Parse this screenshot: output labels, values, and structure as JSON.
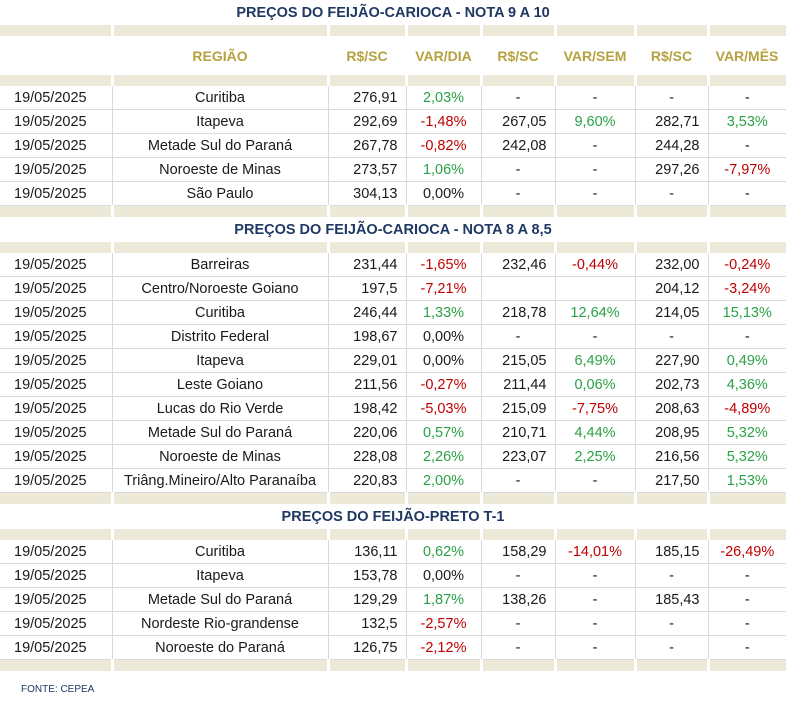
{
  "headers": {
    "regiao": "REGIÃO",
    "rs_sc": "R$/SC",
    "var_dia": "VAR/DIA",
    "rs_sc_sem": "R$/SC",
    "var_sem": "VAR/SEM",
    "rs_sc_mes": "R$/SC",
    "var_mes": "VAR/MÊS"
  },
  "source": "FONTE: CEPEA",
  "colors": {
    "title": "#1f3864",
    "header": "#b5a23f",
    "positive": "#2aa146",
    "negative": "#c00000",
    "strip": "#ece9d8"
  },
  "sections": [
    {
      "title": "PREÇOS DO FEIJÃO-CARIOCA - NOTA 9 A 10",
      "show_header": true,
      "rows": [
        {
          "date": "19/05/2025",
          "region": "Curitiba",
          "price": "276,91",
          "var_day": "2,03%",
          "price_week": "-",
          "var_week": "-",
          "price_month": "-",
          "var_month": "-"
        },
        {
          "date": "19/05/2025",
          "region": "Itapeva",
          "price": "292,69",
          "var_day": "-1,48%",
          "price_week": "267,05",
          "var_week": "9,60%",
          "price_month": "282,71",
          "var_month": "3,53%"
        },
        {
          "date": "19/05/2025",
          "region": "Metade Sul do Paraná",
          "price": "267,78",
          "var_day": "-0,82%",
          "price_week": "242,08",
          "var_week": "-",
          "price_month": "244,28",
          "var_month": "-"
        },
        {
          "date": "19/05/2025",
          "region": "Noroeste de Minas",
          "price": "273,57",
          "var_day": "1,06%",
          "price_week": "-",
          "var_week": "-",
          "price_month": "297,26",
          "var_month": "-7,97%"
        },
        {
          "date": "19/05/2025",
          "region": "São Paulo",
          "price": "304,13",
          "var_day": "0,00%",
          "price_week": "-",
          "var_week": "-",
          "price_month": "-",
          "var_month": "-"
        }
      ]
    },
    {
      "title": "PREÇOS DO FEIJÃO-CARIOCA - NOTA 8 A 8,5",
      "show_header": false,
      "rows": [
        {
          "date": "19/05/2025",
          "region": "Barreiras",
          "price": "231,44",
          "var_day": "-1,65%",
          "price_week": "232,46",
          "var_week": "-0,44%",
          "price_month": "232,00",
          "var_month": "-0,24%"
        },
        {
          "date": "19/05/2025",
          "region": "Centro/Noroeste Goiano",
          "price": "197,5",
          "var_day": "-7,21%",
          "price_week": "",
          "var_week": "",
          "price_month": "204,12",
          "var_month": "-3,24%"
        },
        {
          "date": "19/05/2025",
          "region": "Curitiba",
          "price": "246,44",
          "var_day": "1,33%",
          "price_week": "218,78",
          "var_week": "12,64%",
          "price_month": "214,05",
          "var_month": "15,13%"
        },
        {
          "date": "19/05/2025",
          "region": "Distrito Federal",
          "price": "198,67",
          "var_day": "0,00%",
          "price_week": "-",
          "var_week": "-",
          "price_month": "-",
          "var_month": "-"
        },
        {
          "date": "19/05/2025",
          "region": "Itapeva",
          "price": "229,01",
          "var_day": "0,00%",
          "price_week": "215,05",
          "var_week": "6,49%",
          "price_month": "227,90",
          "var_month": "0,49%"
        },
        {
          "date": "19/05/2025",
          "region": "Leste Goiano",
          "price": "211,56",
          "var_day": "-0,27%",
          "price_week": "211,44",
          "var_week": "0,06%",
          "price_month": "202,73",
          "var_month": "4,36%"
        },
        {
          "date": "19/05/2025",
          "region": "Lucas do Rio Verde",
          "price": "198,42",
          "var_day": "-5,03%",
          "price_week": "215,09",
          "var_week": "-7,75%",
          "price_month": "208,63",
          "var_month": "-4,89%"
        },
        {
          "date": "19/05/2025",
          "region": "Metade Sul do Paraná",
          "price": "220,06",
          "var_day": "0,57%",
          "price_week": "210,71",
          "var_week": "4,44%",
          "price_month": "208,95",
          "var_month": "5,32%"
        },
        {
          "date": "19/05/2025",
          "region": "Noroeste de Minas",
          "price": "228,08",
          "var_day": "2,26%",
          "price_week": "223,07",
          "var_week": "2,25%",
          "price_month": "216,56",
          "var_month": "5,32%"
        },
        {
          "date": "19/05/2025",
          "region": "Triâng.Mineiro/Alto Paranaíba",
          "price": "220,83",
          "var_day": "2,00%",
          "price_week": "-",
          "var_week": "-",
          "price_month": "217,50",
          "var_month": "1,53%"
        }
      ]
    },
    {
      "title": "PREÇOS DO  FEIJÃO-PRETO  T-1",
      "show_header": false,
      "rows": [
        {
          "date": "19/05/2025",
          "region": "Curitiba",
          "price": "136,11",
          "var_day": "0,62%",
          "price_week": "158,29",
          "var_week": "-14,01%",
          "price_month": "185,15",
          "var_month": "-26,49%"
        },
        {
          "date": "19/05/2025",
          "region": "Itapeva",
          "price": "153,78",
          "var_day": "0,00%",
          "price_week": "-",
          "var_week": "-",
          "price_month": "-",
          "var_month": "-"
        },
        {
          "date": "19/05/2025",
          "region": "Metade Sul do Paraná",
          "price": "129,29",
          "var_day": "1,87%",
          "price_week": "138,26",
          "var_week": "-",
          "price_month": "185,43",
          "var_month": "-"
        },
        {
          "date": "19/05/2025",
          "region": "Nordeste Rio-grandense",
          "price": "132,5",
          "var_day": "-2,57%",
          "price_week": "-",
          "var_week": "-",
          "price_month": "-",
          "var_month": "-"
        },
        {
          "date": "19/05/2025",
          "region": "Noroeste do Paraná",
          "price": "126,75",
          "var_day": "-2,12%",
          "price_week": "-",
          "var_week": "-",
          "price_month": "-",
          "var_month": "-"
        }
      ]
    }
  ]
}
